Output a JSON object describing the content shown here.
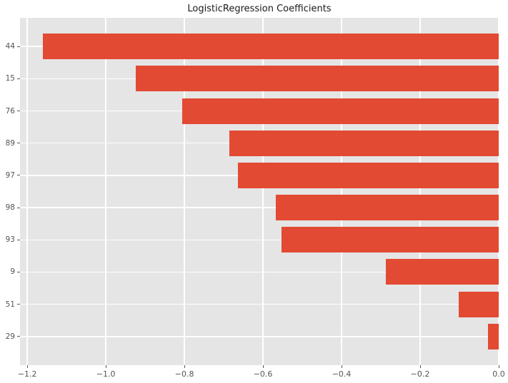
{
  "figure": {
    "title": "LogisticRegression Coefficients"
  },
  "chart_data": {
    "type": "bar",
    "orientation": "horizontal",
    "title": "LogisticRegression Coefficients",
    "categories": [
      "44",
      "15",
      "76",
      "89",
      "97",
      "98",
      "93",
      "9",
      "51",
      "29"
    ],
    "values": [
      -1.161,
      -0.923,
      -0.806,
      -0.686,
      -0.663,
      -0.568,
      -0.553,
      -0.288,
      -0.101,
      -0.028
    ],
    "xlabel": "",
    "ylabel": "",
    "xlim": [
      -1.2185,
      0
    ],
    "ylim": [
      -0.89,
      9.89
    ],
    "bar_thickness": 0.8,
    "xticks": {
      "values": [
        -1.2,
        -1.0,
        -0.8,
        -0.6,
        -0.4,
        -0.2,
        0.0
      ],
      "labels": [
        "−1.2",
        "−1.0",
        "−0.8",
        "−0.6",
        "−0.4",
        "−0.2",
        "0.0"
      ]
    },
    "grid": true,
    "legend": false,
    "style": {
      "bar_color": "#E24A33",
      "plot_bg": "#E5E5E5",
      "grid_color": "#FFFFFF",
      "tick_color": "#555555",
      "title_color": "#1A1A1A",
      "figure_bg": "#FFFFFF"
    }
  }
}
